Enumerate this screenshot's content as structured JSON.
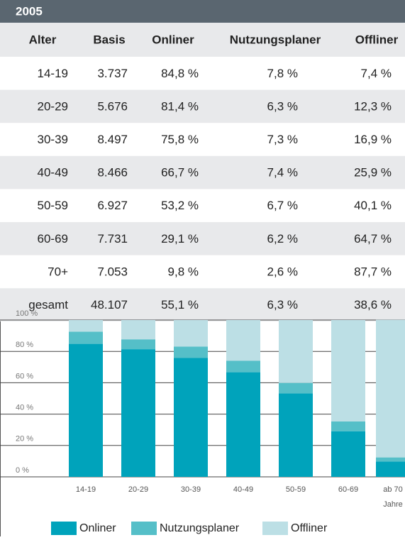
{
  "table": {
    "title": "2005",
    "headers": [
      "Alter",
      "Basis",
      "Onliner",
      "Nutzungsplaner",
      "Offliner"
    ],
    "rows": [
      [
        "14-19",
        "3.737",
        "84,8 %",
        "7,8 %",
        "7,4 %"
      ],
      [
        "20-29",
        "5.676",
        "81,4 %",
        "6,3 %",
        "12,3 %"
      ],
      [
        "30-39",
        "8.497",
        "75,8 %",
        "7,3 %",
        "16,9 %"
      ],
      [
        "40-49",
        "8.466",
        "66,7 %",
        "7,4 %",
        "25,9 %"
      ],
      [
        "50-59",
        "6.927",
        "53,2 %",
        "6,7 %",
        "40,1 %"
      ],
      [
        "60-69",
        "7.731",
        "29,1 %",
        "6,2 %",
        "64,7 %"
      ],
      [
        "70+",
        "7.053",
        "9,8 %",
        "2,6 %",
        "87,7 %"
      ],
      [
        "gesamt",
        "48.107",
        "55,1 %",
        "6,3 %",
        "38,6 %"
      ]
    ]
  },
  "chart_data": {
    "type": "stacked_bar",
    "categories": [
      "14-19",
      "20-29",
      "30-39",
      "40-49",
      "50-59",
      "60-69",
      "ab 70"
    ],
    "xlabel": "Jahre",
    "series": [
      {
        "name": "Onliner",
        "color": "#00a3bb",
        "values": [
          84.8,
          81.4,
          75.8,
          66.7,
          53.2,
          29.1,
          9.8
        ]
      },
      {
        "name": "Nutzungsplaner",
        "color": "#55bfc8",
        "values": [
          7.8,
          6.3,
          7.3,
          7.4,
          6.7,
          6.2,
          2.6
        ]
      },
      {
        "name": "Offliner",
        "color": "#bcdfe5",
        "values": [
          7.4,
          12.3,
          16.9,
          25.9,
          40.1,
          64.7,
          87.7
        ]
      }
    ],
    "ylim": [
      0,
      100
    ],
    "yticks": [
      {
        "value": 0,
        "label": "0 %"
      },
      {
        "value": 20,
        "label": "20 %"
      },
      {
        "value": 40,
        "label": "40 %"
      },
      {
        "value": 60,
        "label": "60 %"
      },
      {
        "value": 80,
        "label": "80 %"
      },
      {
        "value": 100,
        "label": "100 %"
      }
    ],
    "grid": true
  }
}
